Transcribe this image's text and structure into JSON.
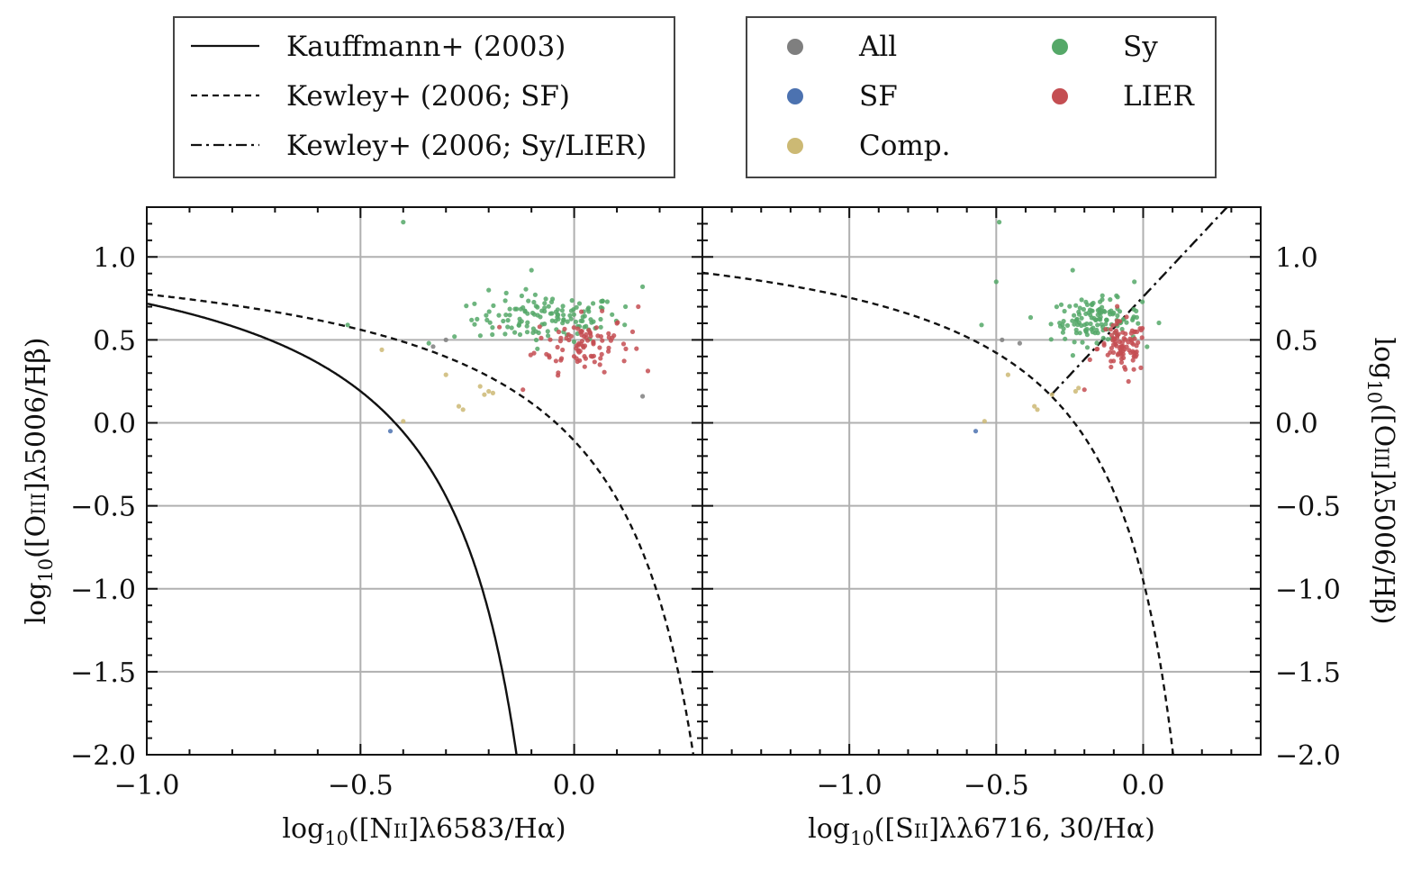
{
  "chart_data": [
    {
      "type": "scatter",
      "panel": "left",
      "xlabel": "log10([NII]λ6583/Hα)",
      "ylabel": "log10([OIII]λ5006/Hβ)",
      "xlim": [
        -1.0,
        0.3
      ],
      "ylim": [
        -2.0,
        1.3
      ],
      "x_ticks": [
        -1.0,
        -0.5,
        0.0
      ],
      "y_ticks": [
        -2.0,
        -1.5,
        -1.0,
        -0.5,
        0.0,
        0.5,
        1.0
      ],
      "grid": true,
      "curves": [
        {
          "name": "Kauffmann+ (2003)",
          "style": "solid",
          "formula": "0.61/(x-0.05)+1.3"
        },
        {
          "name": "Kewley+ (2006; SF)",
          "style": "dashed",
          "formula": "0.61/(x-0.47)+1.19"
        }
      ],
      "series": [
        {
          "name": "All",
          "points": [
            [
              -0.33,
              0.46
            ],
            [
              0.16,
              0.16
            ],
            [
              -0.3,
              0.5
            ]
          ]
        },
        {
          "name": "SF",
          "points": [
            [
              -0.43,
              -0.05
            ]
          ]
        },
        {
          "name": "Comp.",
          "points": [
            [
              -0.45,
              0.44
            ],
            [
              -0.4,
              0.01
            ],
            [
              -0.3,
              0.29
            ],
            [
              -0.27,
              0.1
            ],
            [
              -0.26,
              0.08
            ],
            [
              -0.2,
              0.19
            ],
            [
              -0.21,
              0.17
            ],
            [
              -0.19,
              0.18
            ],
            [
              -0.22,
              0.22
            ]
          ]
        },
        {
          "name": "Sy",
          "points": [
            [
              -0.4,
              1.21
            ],
            [
              -0.53,
              0.59
            ],
            [
              -0.34,
              0.48
            ],
            [
              -0.28,
              0.52
            ],
            [
              -0.24,
              0.62
            ],
            [
              -0.2,
              0.8
            ],
            [
              -0.1,
              0.92
            ],
            [
              0.16,
              0.82
            ],
            [
              0.12,
              0.7
            ]
          ],
          "cloud": {
            "center": [
              -0.06,
              0.63
            ],
            "spread": [
              0.12,
              0.1
            ],
            "count": 130
          }
        },
        {
          "name": "LIER",
          "points": [
            [
              0.15,
              0.7
            ],
            [
              0.1,
              0.6
            ],
            [
              -0.12,
              0.2
            ]
          ],
          "cloud": {
            "center": [
              0.02,
              0.48
            ],
            "spread": [
              0.08,
              0.12
            ],
            "count": 90
          }
        }
      ]
    },
    {
      "type": "scatter",
      "panel": "right",
      "xlabel": "log10([SII]λλ6716, 30/Hα)",
      "ylabel": "log10([OIII]λ5006/Hβ)",
      "xlim": [
        -1.5,
        0.4
      ],
      "ylim": [
        -2.0,
        1.3
      ],
      "x_ticks": [
        -1.0,
        -0.5,
        0.0
      ],
      "y_ticks": [
        -2.0,
        -1.5,
        -1.0,
        -0.5,
        0.0,
        0.5,
        1.0
      ],
      "grid": true,
      "curves": [
        {
          "name": "Kewley+ (2006; SF)",
          "style": "dashed",
          "formula": "0.72/(x-0.32)+1.3"
        },
        {
          "name": "Kewley+ (2006; Sy/LIER)",
          "style": "dashdot",
          "formula": "1.89x+0.76"
        }
      ],
      "series": [
        {
          "name": "All",
          "points": [
            [
              -0.48,
              0.5
            ],
            [
              -0.42,
              0.48
            ]
          ]
        },
        {
          "name": "SF",
          "points": [
            [
              -0.57,
              -0.05
            ]
          ]
        },
        {
          "name": "Comp.",
          "points": [
            [
              -0.54,
              0.01
            ],
            [
              -0.46,
              0.29
            ],
            [
              -0.37,
              0.1
            ],
            [
              -0.36,
              0.08
            ],
            [
              -0.23,
              0.19
            ],
            [
              -0.22,
              0.21
            ],
            [
              -0.31,
              0.17
            ]
          ]
        },
        {
          "name": "Sy",
          "points": [
            [
              -0.49,
              1.21
            ],
            [
              -0.55,
              0.59
            ],
            [
              -0.5,
              0.85
            ],
            [
              -0.24,
              0.92
            ],
            [
              -0.03,
              0.85
            ]
          ],
          "cloud": {
            "center": [
              -0.16,
              0.62
            ],
            "spread": [
              0.11,
              0.09
            ],
            "count": 130
          }
        },
        {
          "name": "LIER",
          "points": [
            [
              -0.2,
              0.2
            ],
            [
              -0.05,
              0.25
            ]
          ],
          "cloud": {
            "center": [
              -0.07,
              0.45
            ],
            "spread": [
              0.06,
              0.11
            ],
            "count": 90
          }
        }
      ]
    }
  ],
  "legend_lines": [
    {
      "label": "Kauffmann+ (2003)",
      "style": "solid"
    },
    {
      "label": "Kewley+ (2006; SF)",
      "style": "dashed"
    },
    {
      "label": "Kewley+ (2006; Sy/LIER)",
      "style": "dashdot"
    }
  ],
  "legend_classes": [
    {
      "label": "All",
      "color": "#7f7f7f"
    },
    {
      "label": "SF",
      "color": "#4c72b0"
    },
    {
      "label": "Comp.",
      "color": "#ccb974"
    },
    {
      "label": "Sy",
      "color": "#55a868"
    },
    {
      "label": "LIER",
      "color": "#c44e52"
    }
  ],
  "colors": {
    "All": "#7f7f7f",
    "SF": "#4c72b0",
    "Comp.": "#ccb974",
    "Sy": "#55a868",
    "LIER": "#c44e52"
  }
}
